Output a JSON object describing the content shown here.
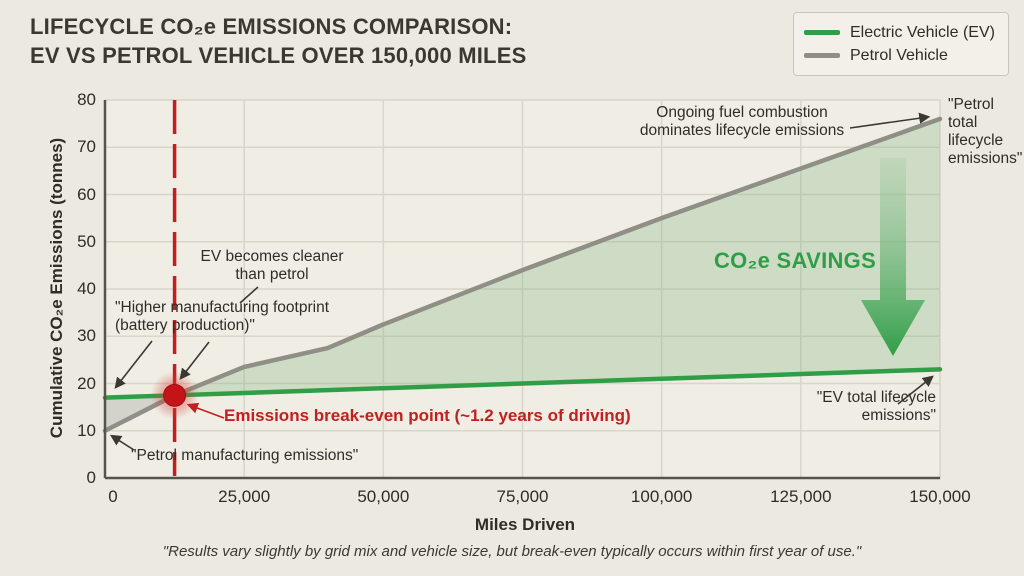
{
  "header": {
    "title_line1": "LIFECYCLE CO₂e EMISSIONS COMPARISON:",
    "title_line2": "EV VS PETROL VEHICLE OVER 150,000 MILES"
  },
  "legend": {
    "items": [
      {
        "label": "Electric Vehicle (EV)",
        "color": "#2f9e47"
      },
      {
        "label": "Petrol Vehicle",
        "color": "#8f8f87"
      }
    ]
  },
  "chart_data": {
    "type": "line",
    "title": "Lifecycle CO₂e emissions comparison: EV vs petrol vehicle over 150,000 miles",
    "xlabel": "Miles Driven",
    "ylabel": "Cumulative CO₂e Emissions (tonnes)",
    "xlim": [
      0,
      150000
    ],
    "ylim": [
      0,
      80
    ],
    "xticks": [
      0,
      25000,
      50000,
      75000,
      100000,
      125000,
      150000
    ],
    "xtick_labels": [
      "0",
      "25,000",
      "50,000",
      "75,000",
      "100,000",
      "125,000",
      "150,000"
    ],
    "yticks": [
      0,
      10,
      20,
      30,
      40,
      50,
      60,
      70,
      80
    ],
    "grid": true,
    "legend_position": "top-right",
    "series": [
      {
        "name": "Electric Vehicle (EV)",
        "color": "#2f9e47",
        "x": [
          0,
          12500,
          25000,
          50000,
          75000,
          100000,
          125000,
          150000
        ],
        "y": [
          17,
          17.5,
          18,
          19,
          20,
          21,
          22,
          23
        ]
      },
      {
        "name": "Petrol Vehicle",
        "color": "#8f8f87",
        "x": [
          0,
          12500,
          25000,
          40000,
          50000,
          75000,
          100000,
          125000,
          150000
        ],
        "y": [
          10,
          17.5,
          23.5,
          27.5,
          32.5,
          44,
          55,
          65.5,
          76
        ]
      }
    ],
    "break_even": {
      "x": 12500,
      "y": 17.5
    },
    "colors": {
      "savings_area": "rgba(122,176,120,0.28)",
      "manufacturing_gap_area": "rgba(120,120,112,0.22)",
      "break_even_red": "#c2201f",
      "grid": "#d8d6c9",
      "axis": "#55544b",
      "plot_background": "#efede4",
      "savings_arrow": "#2f9e47"
    }
  },
  "annotations": {
    "ongoing": "Ongoing fuel combustion dominates lifecycle emissions",
    "petrol_total": "\"Petrol total lifecycle emissions\"",
    "co2_savings": "CO₂e SAVINGS",
    "ev_total": "\"EV total lifecycle emissions\"",
    "ev_cleaner": "EV becomes cleaner than petrol",
    "higher_mfg": "\"Higher manufacturing footprint (battery production)\"",
    "break_even": "Emissions break-even point (~1.2 years of driving)",
    "petrol_mfg": "\"Petrol manufacturing emissions\""
  },
  "footer": {
    "note": "\"Results vary slightly by grid mix and vehicle size, but break-even typically occurs within first year of use.\""
  }
}
